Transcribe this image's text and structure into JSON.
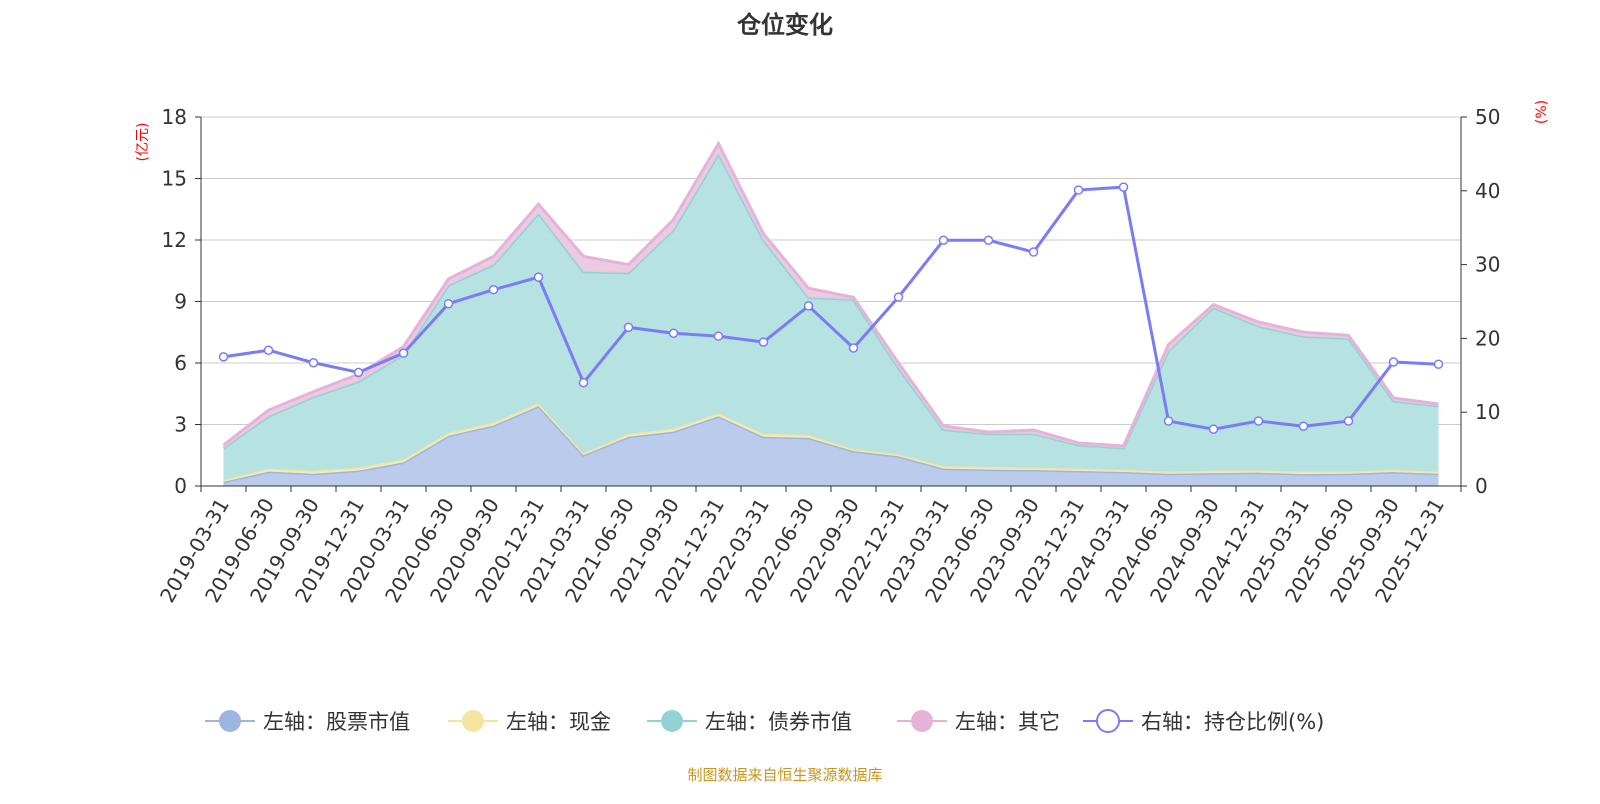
{
  "chart_data": {
    "type": "area",
    "title": "仓位变化",
    "left_axis_label": "(亿元)",
    "right_axis_label": "(%)",
    "ylim_left": [
      0,
      18
    ],
    "yticks_left": [
      0,
      3,
      6,
      9,
      12,
      15,
      18
    ],
    "ylim_right": [
      0,
      50
    ],
    "yticks_right": [
      0,
      10,
      20,
      30,
      40,
      50
    ],
    "grid": true,
    "legend_position": "bottom",
    "categories": [
      "2019-03-31",
      "2019-06-30",
      "2019-09-30",
      "2019-12-31",
      "2020-03-31",
      "2020-06-30",
      "2020-09-30",
      "2020-12-31",
      "2021-03-31",
      "2021-06-30",
      "2021-09-30",
      "2021-12-31",
      "2022-03-31",
      "2022-06-30",
      "2022-09-30",
      "2022-12-31",
      "2023-03-31",
      "2023-06-30",
      "2023-09-30",
      "2023-12-31",
      "2024-03-31",
      "2024-06-30",
      "2024-09-30",
      "2024-12-31",
      "2025-03-31",
      "2025-06-30",
      "2025-09-30",
      "2025-12-31"
    ],
    "series": [
      {
        "name": "左轴：股票市值",
        "axis": "left",
        "stacked": true,
        "color": "#9db6e0",
        "fill": "#b7c8ea",
        "values": [
          0.2,
          0.7,
          0.6,
          0.75,
          1.15,
          2.45,
          2.95,
          3.9,
          1.5,
          2.4,
          2.65,
          3.4,
          2.4,
          2.35,
          1.7,
          1.45,
          0.85,
          0.8,
          0.78,
          0.73,
          0.68,
          0.6,
          0.63,
          0.65,
          0.58,
          0.6,
          0.68,
          0.6
        ]
      },
      {
        "name": "左轴：现金",
        "axis": "left",
        "stacked": true,
        "color": "#f3e4a0",
        "fill": "#f6edc2",
        "values": [
          0.1,
          0.15,
          0.15,
          0.15,
          0.15,
          0.15,
          0.15,
          0.15,
          0.1,
          0.15,
          0.15,
          0.15,
          0.15,
          0.15,
          0.1,
          0.1,
          0.12,
          0.13,
          0.12,
          0.12,
          0.12,
          0.1,
          0.12,
          0.12,
          0.12,
          0.1,
          0.12,
          0.1
        ]
      },
      {
        "name": "左轴：债券市值",
        "axis": "left",
        "stacked": true,
        "color": "#92d2d2",
        "fill": "#b3e0e0",
        "values": [
          1.55,
          2.55,
          3.6,
          4.2,
          5.1,
          7.2,
          7.7,
          9.25,
          8.85,
          7.85,
          9.7,
          12.65,
          9.45,
          6.7,
          7.3,
          4.2,
          1.78,
          1.62,
          1.65,
          1.15,
          1.05,
          5.9,
          7.95,
          7.03,
          6.6,
          6.5,
          3.35,
          3.2
        ]
      },
      {
        "name": "左轴：其它",
        "axis": "left",
        "stacked": true,
        "color": "#e6b3d8",
        "fill": "#ebc8e0",
        "values": [
          0.15,
          0.3,
          0.25,
          0.35,
          0.4,
          0.3,
          0.4,
          0.45,
          0.75,
          0.4,
          0.5,
          0.5,
          0.3,
          0.45,
          0.1,
          0.25,
          0.18,
          0.08,
          0.18,
          0.1,
          0.1,
          0.3,
          0.15,
          0.2,
          0.2,
          0.15,
          0.15,
          0.1
        ]
      },
      {
        "name": "右轴：持仓比例(%)",
        "axis": "right",
        "stacked": false,
        "color": "#7b7cf5",
        "values": [
          17.5,
          18.4,
          16.7,
          15.4,
          18.0,
          24.7,
          26.6,
          28.3,
          14.0,
          21.5,
          20.7,
          20.3,
          19.5,
          24.4,
          18.7,
          25.6,
          33.3,
          33.3,
          31.7,
          40.1,
          40.5,
          8.8,
          7.7,
          8.8,
          8.1,
          8.8,
          16.8,
          16.5
        ]
      }
    ]
  },
  "footer": "制图数据来自恒生聚源数据库",
  "colors": {
    "axis_label": "#ff0000",
    "footer": "#c8961e",
    "grid": "#cccccc"
  }
}
